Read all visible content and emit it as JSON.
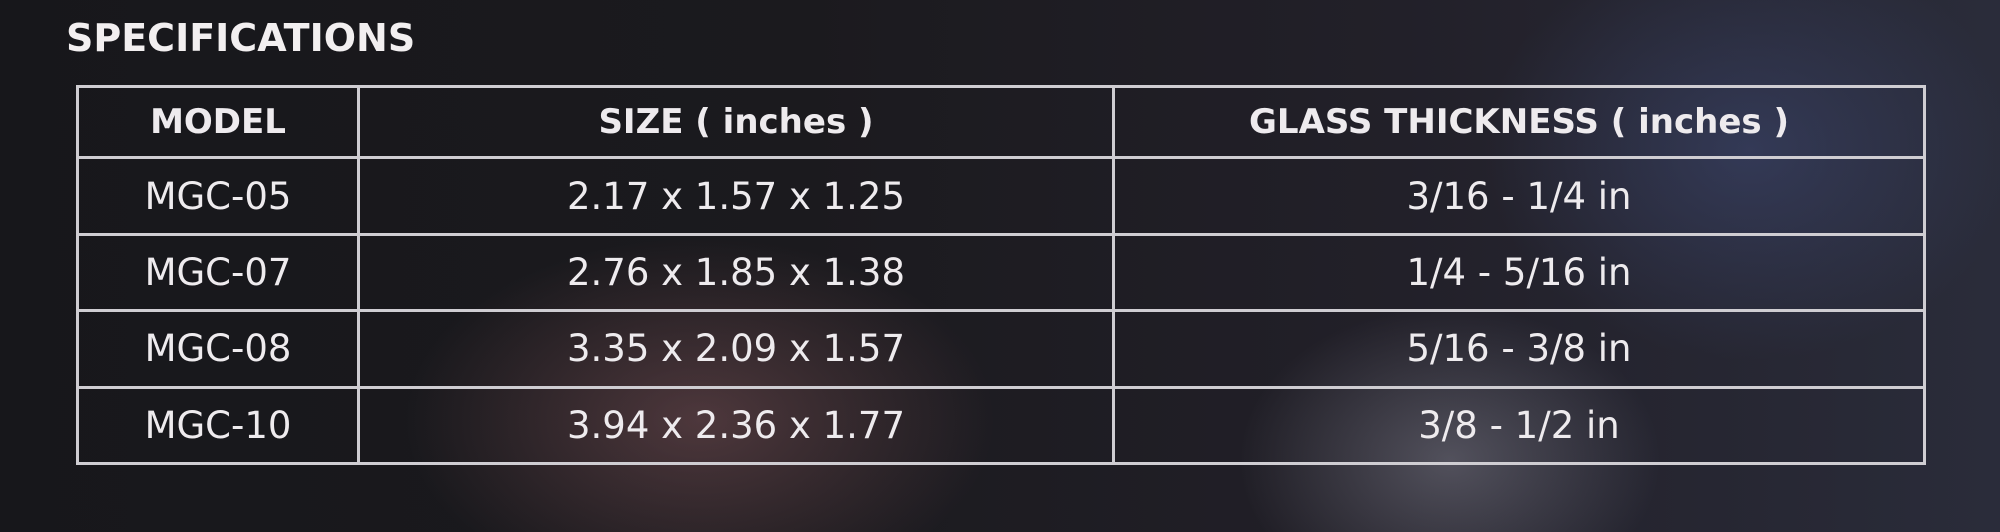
{
  "title": "SPECIFICATIONS",
  "table": {
    "headers": [
      "MODEL",
      "SIZE ( inches )",
      "GLASS THICKNESS ( inches )"
    ],
    "rows": [
      [
        "MGC-05",
        "2.17 x 1.57 x 1.25",
        "3/16 - 1/4 in"
      ],
      [
        "MGC-07",
        "2.76 x 1.85 x 1.38",
        "1/4 - 5/16 in"
      ],
      [
        "MGC-08",
        "3.35 x 2.09 x 1.57",
        "5/16 - 3/8 in"
      ],
      [
        "MGC-10",
        "3.94 x 2.36 x 1.77",
        "3/8 - 1/2 in"
      ]
    ]
  }
}
